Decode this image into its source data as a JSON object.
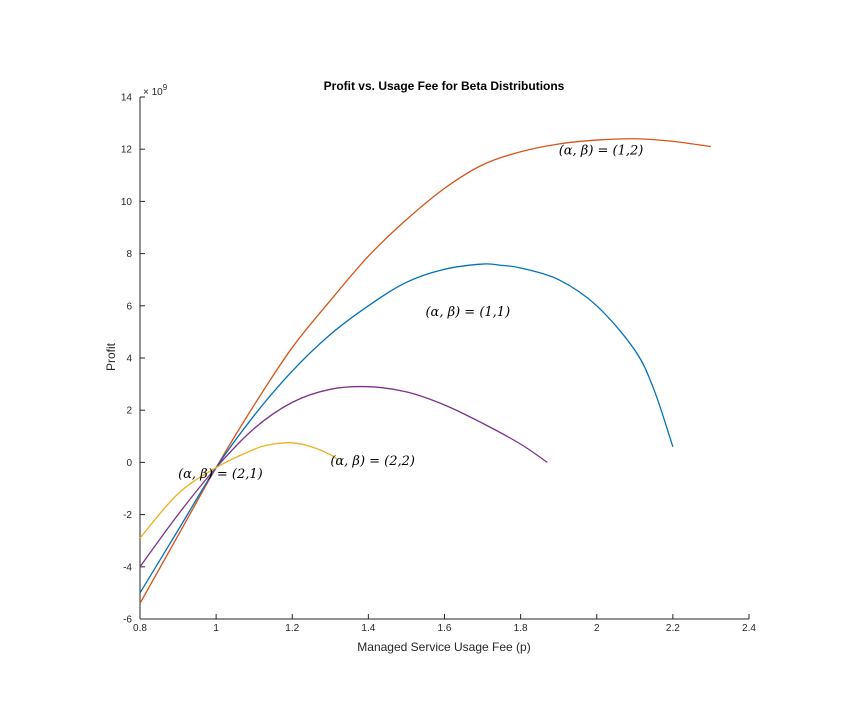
{
  "chart_data": {
    "type": "line",
    "title": "Profit vs. Usage Fee for Beta Distributions",
    "xlabel": "Managed Service Usage Fee (p)",
    "ylabel": "Profit",
    "y_multiplier_label": "× 10",
    "y_multiplier_exp": "9",
    "xlim": [
      0.8,
      2.4
    ],
    "ylim": [
      -6,
      14
    ],
    "x_ticks": [
      "0.8",
      "1",
      "1.2",
      "1.4",
      "1.6",
      "1.8",
      "2",
      "2.2",
      "2.4"
    ],
    "x_tick_values": [
      0.8,
      1.0,
      1.2,
      1.4,
      1.6,
      1.8,
      2.0,
      2.2,
      2.4
    ],
    "y_ticks": [
      "-6",
      "-4",
      "-2",
      "0",
      "2",
      "4",
      "6",
      "8",
      "10",
      "12",
      "14"
    ],
    "y_tick_values": [
      -6,
      -4,
      -2,
      0,
      2,
      4,
      6,
      8,
      10,
      12,
      14
    ],
    "grid": false,
    "series": [
      {
        "color": "#D95319",
        "x": [
          0.8,
          0.9,
          1.0,
          1.1,
          1.2,
          1.3,
          1.4,
          1.5,
          1.6,
          1.7,
          1.8,
          1.9,
          2.0,
          2.1,
          2.2,
          2.3
        ],
        "y": [
          -5.4,
          -2.8,
          -0.2,
          2.2,
          4.4,
          6.2,
          7.9,
          9.3,
          10.5,
          11.4,
          11.9,
          12.2,
          12.35,
          12.4,
          12.3,
          12.1
        ]
      },
      {
        "color": "#0072BD",
        "x": [
          0.8,
          0.9,
          1.0,
          1.1,
          1.2,
          1.3,
          1.4,
          1.5,
          1.6,
          1.7,
          1.75,
          1.8,
          1.9,
          2.0,
          2.1,
          2.15,
          2.2
        ],
        "y": [
          -5.0,
          -2.6,
          -0.2,
          1.8,
          3.5,
          4.9,
          6.0,
          6.9,
          7.4,
          7.6,
          7.55,
          7.45,
          7.0,
          6.0,
          4.3,
          2.8,
          0.6
        ]
      },
      {
        "color": "#7E2F8E",
        "x": [
          0.8,
          0.9,
          1.0,
          1.1,
          1.2,
          1.3,
          1.4,
          1.5,
          1.6,
          1.7,
          1.8,
          1.87
        ],
        "y": [
          -4.0,
          -2.0,
          -0.2,
          1.3,
          2.3,
          2.8,
          2.9,
          2.7,
          2.2,
          1.5,
          0.7,
          0.0
        ]
      },
      {
        "color": "#EDB120",
        "x": [
          0.8,
          0.9,
          1.0,
          1.1,
          1.15,
          1.2,
          1.25,
          1.3,
          1.32
        ],
        "y": [
          -2.9,
          -1.2,
          -0.2,
          0.5,
          0.7,
          0.75,
          0.6,
          0.3,
          0.1
        ]
      }
    ],
    "annotations": [
      {
        "text": "(α, β) = (1,2)",
        "x": 1.9,
        "y": 11.8
      },
      {
        "text": "(α, β) = (1,1)",
        "x": 1.55,
        "y": 5.6
      },
      {
        "text": "(α, β) = (2,2)",
        "x": 1.3,
        "y": -0.1
      },
      {
        "text": "(α, β) = (2,1)",
        "x": 0.9,
        "y": -0.6
      }
    ]
  }
}
